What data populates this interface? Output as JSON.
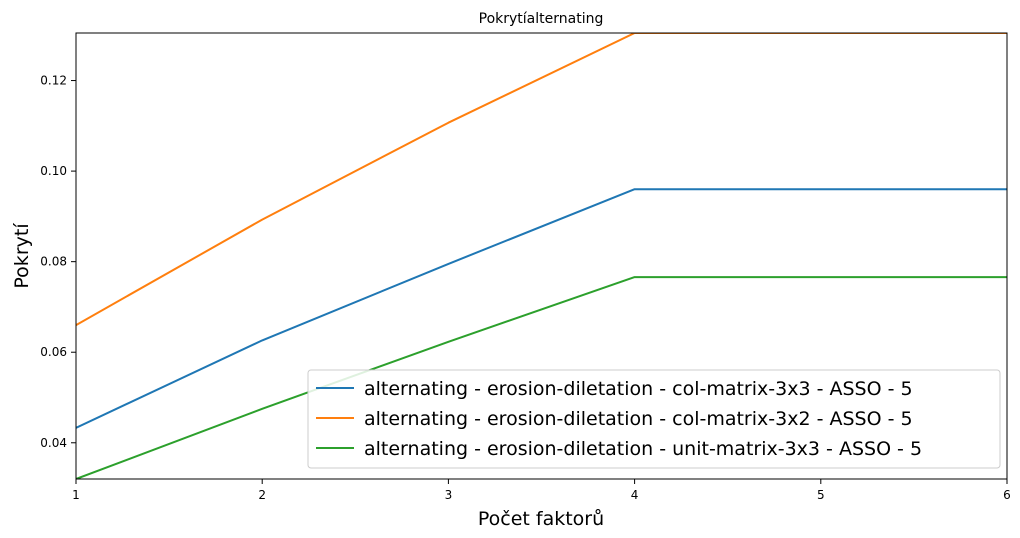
{
  "chart_data": {
    "type": "line",
    "title": "Pokrytíalternating",
    "xlabel": "Počet faktorů",
    "ylabel": "Pokrytí",
    "x": [
      1,
      2,
      3,
      4,
      5,
      6
    ],
    "xlim": [
      1,
      6
    ],
    "ylim": [
      0.032,
      0.1305
    ],
    "xticks": [
      "1",
      "2",
      "3",
      "4",
      "5",
      "6"
    ],
    "yticks": [
      "0.04",
      "0.06",
      "0.08",
      "0.10",
      "0.12"
    ],
    "ytick_values": [
      0.04,
      0.06,
      0.08,
      0.1,
      0.12
    ],
    "grid": false,
    "legend_position": "lower-right",
    "series": [
      {
        "name": "alternating - erosion-diletation - col-matrix-3x3 - ASSO - 5",
        "color": "#1f77b4",
        "values": [
          0.0433,
          0.0626,
          0.0795,
          0.096,
          0.096,
          0.096
        ]
      },
      {
        "name": "alternating - erosion-diletation - col-matrix-3x2 - ASSO - 5",
        "color": "#ff7f0e",
        "values": [
          0.066,
          0.0893,
          0.1107,
          0.1305,
          0.1305,
          0.1305
        ]
      },
      {
        "name": "alternating - erosion-diletation - unit-matrix-3x3 - ASSO - 5",
        "color": "#2ca02c",
        "values": [
          0.032,
          0.0475,
          0.0623,
          0.0766,
          0.0766,
          0.0766
        ]
      }
    ]
  }
}
